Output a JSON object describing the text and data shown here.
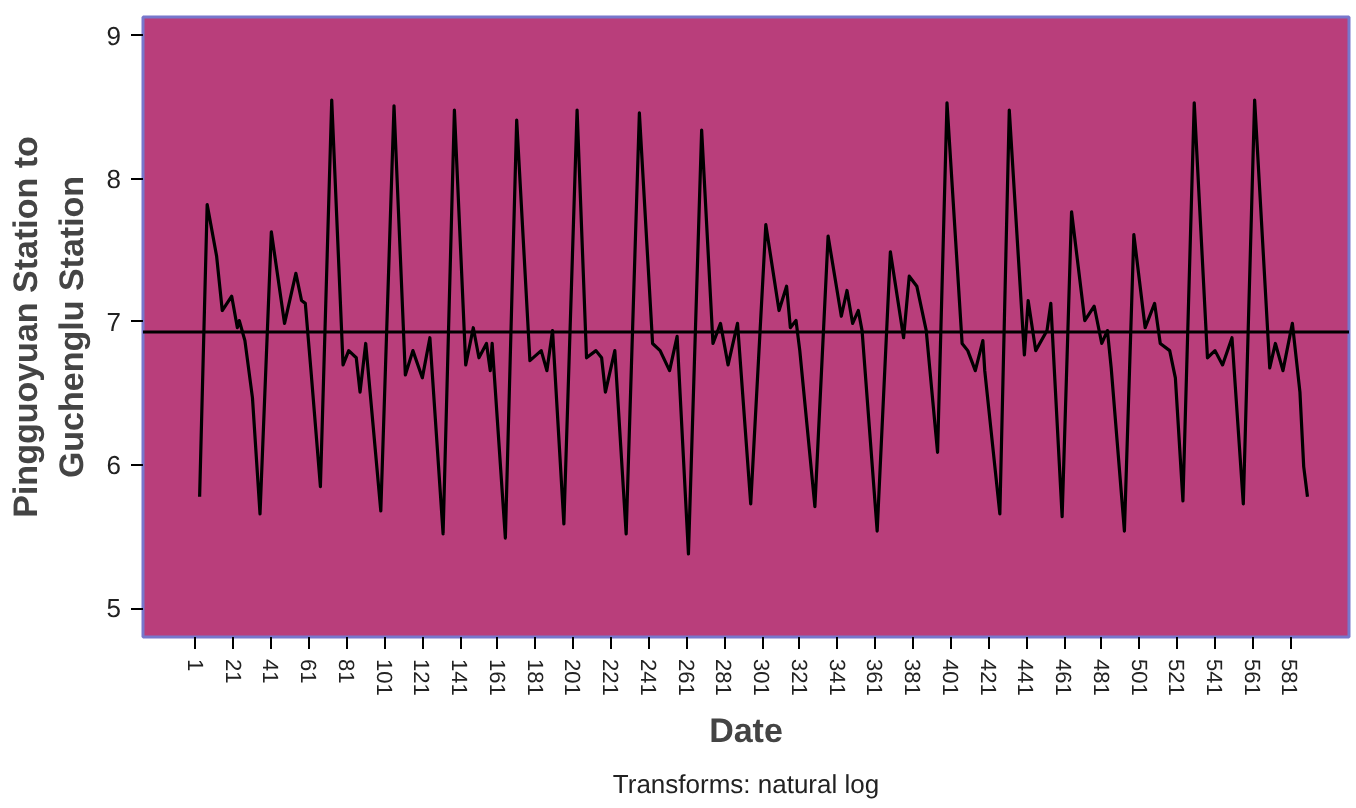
{
  "chart_data": {
    "type": "line",
    "xlabel": "Date",
    "ylabel": "Pingguoyuan Station to\nGuchenglu Station",
    "annotations": [
      "Transforms: natural log"
    ],
    "x": [
      3,
      7,
      12,
      15,
      20,
      23,
      24,
      27,
      31,
      35,
      41,
      48,
      54,
      57,
      59,
      62,
      67,
      73,
      79,
      82,
      86,
      88,
      91,
      99,
      106,
      112,
      116,
      121,
      125,
      132,
      138,
      144,
      148,
      151,
      155,
      157,
      158,
      165,
      171,
      178,
      184,
      187,
      190,
      196,
      203,
      208,
      213,
      216,
      218,
      223,
      229,
      236,
      243,
      247,
      252,
      256,
      262,
      269,
      275,
      279,
      283,
      288,
      295,
      303,
      310,
      314,
      316,
      319,
      321,
      329,
      336,
      343,
      346,
      349,
      352,
      354,
      362,
      369,
      376,
      379,
      383,
      388,
      394,
      399,
      407,
      410,
      414,
      418,
      419,
      427,
      432,
      440,
      442,
      446,
      452,
      454,
      460,
      465,
      472,
      477,
      481,
      484,
      486,
      493,
      498,
      504,
      509,
      512,
      517,
      520,
      524,
      530,
      537,
      541,
      545,
      550,
      556,
      562,
      570,
      573,
      577,
      582,
      586,
      588,
      590
    ],
    "series": [
      {
        "color": "#000000",
        "values": [
          5.78,
          7.82,
          7.46,
          7.08,
          7.18,
          6.96,
          7.01,
          6.87,
          6.47,
          5.66,
          7.63,
          6.99,
          7.34,
          7.15,
          7.13,
          6.66,
          5.85,
          8.55,
          6.7,
          6.8,
          6.75,
          6.51,
          6.85,
          5.68,
          8.51,
          6.63,
          6.8,
          6.61,
          6.89,
          5.52,
          8.48,
          6.7,
          6.96,
          6.75,
          6.85,
          6.66,
          6.85,
          5.49,
          8.41,
          6.73,
          6.8,
          6.66,
          6.94,
          5.59,
          8.48,
          6.75,
          6.8,
          6.75,
          6.51,
          6.8,
          5.52,
          8.46,
          6.85,
          6.8,
          6.66,
          6.9,
          5.38,
          8.34,
          6.85,
          6.99,
          6.7,
          6.99,
          5.73,
          7.68,
          7.08,
          7.25,
          6.96,
          7.01,
          6.8,
          5.71,
          7.6,
          7.04,
          7.22,
          6.99,
          7.08,
          6.94,
          5.54,
          7.49,
          6.89,
          7.32,
          7.25,
          6.94,
          6.09,
          8.53,
          6.85,
          6.8,
          6.66,
          6.87,
          6.66,
          5.66,
          8.48,
          6.77,
          7.15,
          6.8,
          6.94,
          7.13,
          5.64,
          7.77,
          7.01,
          7.11,
          6.85,
          6.94,
          6.68,
          5.54,
          7.61,
          6.96,
          7.13,
          6.85,
          6.8,
          6.61,
          5.75,
          8.53,
          6.75,
          6.8,
          6.7,
          6.89,
          5.73,
          8.55,
          6.68,
          6.85,
          6.66,
          6.99,
          6.51,
          5.99,
          5.78
        ]
      }
    ],
    "xlim": [
      -27,
      612
    ],
    "xticks": [
      1,
      21,
      41,
      61,
      81,
      101,
      121,
      141,
      161,
      181,
      201,
      221,
      241,
      261,
      281,
      301,
      321,
      341,
      361,
      381,
      401,
      421,
      441,
      461,
      481,
      501,
      521,
      541,
      561,
      581
    ],
    "ylim": [
      4.8,
      9.13
    ],
    "yticks": [
      5,
      6,
      7,
      8,
      9
    ],
    "ref_lines": [
      {
        "axis": "y",
        "value": 6.93,
        "color": "#000000"
      }
    ],
    "line_style": "solid",
    "grid": false
  }
}
